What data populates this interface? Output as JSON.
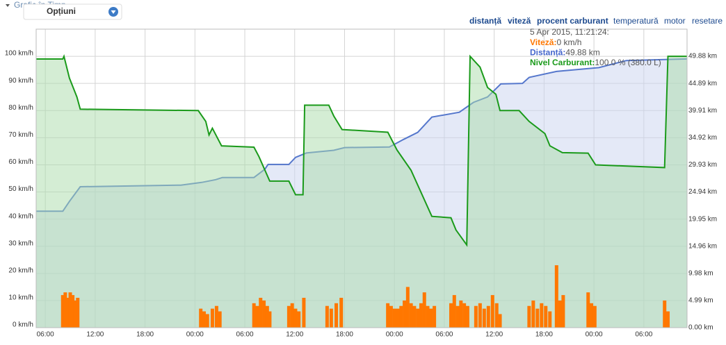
{
  "header": {
    "title": "Grafic în Timp",
    "options": "Opțiuni"
  },
  "controls": [
    "temperatură",
    "motor",
    "resetare"
  ],
  "tooltip": {
    "time": "5 Apr 2015, 11:21:24:",
    "rows": [
      {
        "label": "Viteză:",
        "value": "0 km/h",
        "color": "#ff7700"
      },
      {
        "label": "Distanță:",
        "value": "49.88 km",
        "color": "#4466cc"
      },
      {
        "label": "Nivel Carburant:",
        "value": "100.0 % (380.0 L)",
        "color": "#1a9a1a"
      }
    ]
  },
  "chart_data": {
    "type": "line",
    "grid": true,
    "xlim": [
      4.9,
      83.2
    ],
    "xticks": [
      {
        "value": 6,
        "label": "06:00"
      },
      {
        "value": 12,
        "label": "12:00"
      },
      {
        "value": 18,
        "label": "18:00"
      },
      {
        "value": 24,
        "label": "00:00"
      },
      {
        "value": 30,
        "label": "06:00"
      },
      {
        "value": 36,
        "label": "12:00"
      },
      {
        "value": 42,
        "label": "18:00"
      },
      {
        "value": 48,
        "label": "00:00"
      },
      {
        "value": 54,
        "label": "06:00"
      },
      {
        "value": 60,
        "label": "12:00"
      },
      {
        "value": 66,
        "label": "18:00"
      },
      {
        "value": 72,
        "label": "00:00"
      },
      {
        "value": 78,
        "label": "06:00"
      }
    ],
    "ylim": [
      0,
      110
    ],
    "yticks": [
      {
        "value": 0,
        "label": "0 km/h"
      },
      {
        "value": 10,
        "label": "10 km/h"
      },
      {
        "value": 20,
        "label": "20 km/h"
      },
      {
        "value": 30,
        "label": "30 km/h"
      },
      {
        "value": 40,
        "label": "40 km/h"
      },
      {
        "value": 50,
        "label": "50 km/h"
      },
      {
        "value": 60,
        "label": "60 km/h"
      },
      {
        "value": 70,
        "label": "70 km/h"
      },
      {
        "value": 80,
        "label": "80 km/h"
      },
      {
        "value": 90,
        "label": "90 km/h"
      },
      {
        "value": 100,
        "label": "100 km/h"
      }
    ],
    "y2lim": [
      0,
      54.868
    ],
    "y2ticks": [
      {
        "value": 0,
        "label": "0.00 km"
      },
      {
        "value": 4.988,
        "label": "4.99 km"
      },
      {
        "value": 9.976,
        "label": "9.98 km"
      },
      {
        "value": 14.964,
        "label": "14.96 km"
      },
      {
        "value": 19.952,
        "label": "19.95 km"
      },
      {
        "value": 24.94,
        "label": "24.94 km"
      },
      {
        "value": 29.928,
        "label": "29.93 km"
      },
      {
        "value": 34.916,
        "label": "34.92 km"
      },
      {
        "value": 39.904,
        "label": "39.91 km"
      },
      {
        "value": 44.892,
        "label": "44.89 km"
      },
      {
        "value": 49.88,
        "label": "49.88 km"
      }
    ],
    "series": [
      {
        "name": "distanță",
        "color": "#5577cc",
        "fill": "#c9d4f0",
        "axis": "y2",
        "kind": "area",
        "x": [
          4.9,
          8.1,
          8.9,
          10.2,
          22.3,
          24.8,
          26.5,
          27.3,
          31.1,
          32.4,
          32.8,
          35.3,
          36.1,
          37.4,
          40.7,
          42.0,
          47.4,
          49.1,
          50.8,
          52.5,
          55.8,
          57.5,
          59.2,
          60.8,
          63.4,
          64.2,
          67.5,
          72.6,
          75.9,
          83.2
        ],
        "values": [
          21.4,
          21.4,
          23.2,
          25.9,
          26.2,
          26.7,
          27.2,
          27.6,
          27.6,
          29.1,
          30.0,
          30.0,
          31.3,
          32.1,
          32.6,
          33.1,
          33.2,
          34.6,
          35.9,
          38.7,
          39.6,
          41.4,
          42.4,
          44.8,
          44.9,
          46.0,
          47.1,
          47.8,
          49.1,
          49.4
        ]
      },
      {
        "name": "viteză",
        "color": "#ff7700",
        "kind": "bars",
        "x": [
          8.1,
          8.4,
          8.7,
          9.0,
          9.3,
          9.6,
          9.9,
          24.7,
          25.1,
          25.5,
          26.1,
          26.6,
          27.0,
          31.1,
          31.5,
          31.9,
          32.3,
          32.7,
          33.0,
          35.3,
          35.7,
          36.1,
          36.5,
          37.1,
          39.9,
          40.4,
          41.0,
          41.6,
          47.2,
          47.6,
          48.0,
          48.4,
          48.8,
          49.2,
          49.6,
          50.0,
          50.4,
          50.8,
          51.2,
          51.6,
          52.0,
          52.4,
          52.8,
          54.8,
          55.2,
          55.6,
          56.0,
          56.4,
          56.8,
          57.8,
          58.3,
          58.8,
          59.3,
          59.8,
          60.3,
          60.7,
          64.2,
          64.7,
          65.2,
          65.7,
          66.2,
          66.7,
          67.5,
          67.9,
          68.3,
          71.3,
          71.7,
          72.1,
          80.5,
          80.9
        ],
        "values": [
          12,
          13,
          11,
          13,
          12,
          10,
          11,
          7,
          6,
          5,
          7,
          8,
          6,
          9,
          8,
          11,
          10,
          8,
          6,
          8,
          9,
          7,
          6,
          11,
          8,
          7,
          9,
          11,
          9,
          8,
          7,
          7,
          8,
          10,
          15,
          9,
          8,
          7,
          9,
          13,
          8,
          7,
          8,
          9,
          12,
          8,
          10,
          9,
          8,
          8,
          9,
          7,
          8,
          12,
          9,
          5,
          8,
          10,
          7,
          9,
          8,
          6,
          23,
          10,
          12,
          13,
          9,
          8,
          10,
          6
        ]
      },
      {
        "name": "procent carburant",
        "color": "#1a9a1a",
        "fill": "#a9dba9",
        "kind": "area",
        "x": [
          4.9,
          8.1,
          8.25,
          8.9,
          9.8,
          10.2,
          24.4,
          25.3,
          25.7,
          26.1,
          27.2,
          31.1,
          31.7,
          33.0,
          35.3,
          36.1,
          37.0,
          37.2,
          40.1,
          40.7,
          41.7,
          47.2,
          48.3,
          50.0,
          52.5,
          54.8,
          55.4,
          56.7,
          57.1,
          58.3,
          59.2,
          60.2,
          60.7,
          63.0,
          64.2,
          66.1,
          66.7,
          68.2,
          71.3,
          72.2,
          80.5,
          80.9,
          83.2
        ],
        "values": [
          99,
          99,
          100,
          92,
          85,
          80.5,
          80,
          76,
          71,
          73.5,
          67,
          66.5,
          63,
          54,
          54,
          49,
          49,
          82,
          82,
          78,
          73,
          72,
          65.5,
          58,
          41,
          40.5,
          36,
          30.5,
          100,
          96,
          88.5,
          86,
          80,
          80,
          76,
          71.5,
          67,
          64.5,
          64.3,
          60,
          59,
          100,
          100
        ]
      }
    ]
  }
}
